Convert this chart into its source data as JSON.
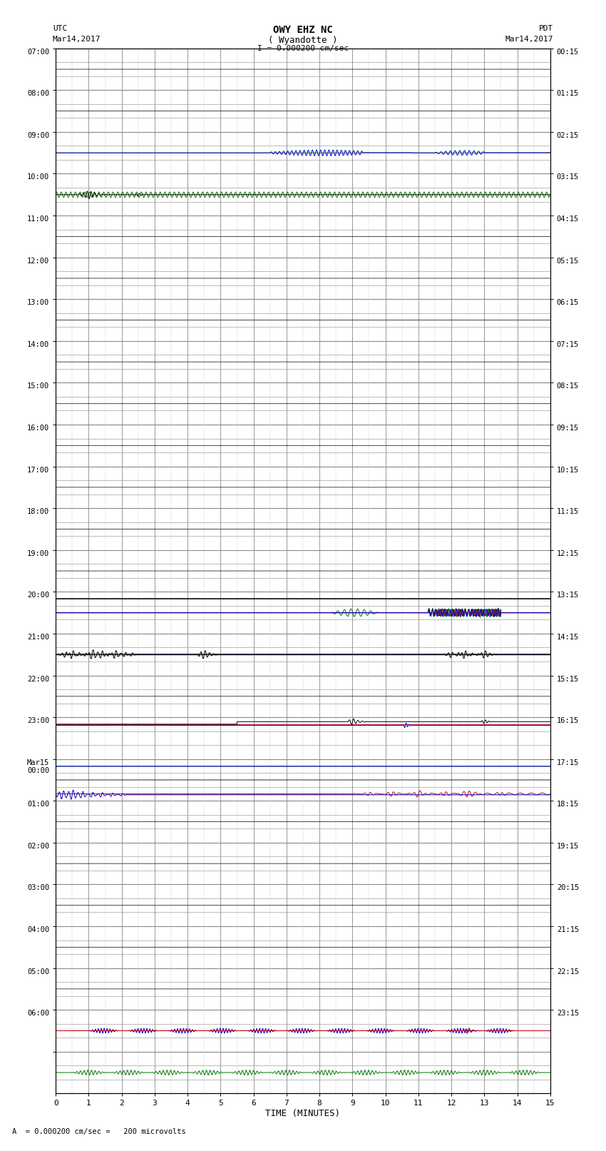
{
  "title_line1": "OWY EHZ NC",
  "title_line2": "( Wyandotte )",
  "scale_text": "I = 0.000200 cm/sec",
  "left_label_top": "UTC",
  "left_label_date": "Mar14,2017",
  "right_label_top": "PDT",
  "right_label_date": "Mar14,2017",
  "bottom_label": "TIME (MINUTES)",
  "footer_text": "A  = 0.000200 cm/sec =   200 microvolts",
  "xlabel_ticks": [
    0,
    1,
    2,
    3,
    4,
    5,
    6,
    7,
    8,
    9,
    10,
    11,
    12,
    13,
    14,
    15
  ],
  "utc_times_left": [
    "07:00",
    "",
    "",
    "08:00",
    "",
    "",
    "09:00",
    "",
    "",
    "10:00",
    "",
    "",
    "11:00",
    "",
    "",
    "12:00",
    "",
    "",
    "13:00",
    "",
    "",
    "14:00",
    "",
    "",
    "15:00",
    "",
    "",
    "16:00",
    "",
    "",
    "17:00",
    "",
    "",
    "18:00",
    "",
    "",
    "19:00",
    "",
    "",
    "20:00",
    "",
    "",
    "21:00",
    "",
    "",
    "22:00",
    "",
    "",
    "23:00",
    "",
    "",
    "Mar15",
    "00:00",
    "",
    "",
    "01:00",
    "",
    "",
    "02:00",
    "",
    "",
    "03:00",
    "",
    "",
    "04:00",
    "",
    "",
    "05:00",
    "",
    "",
    "06:00",
    "",
    ""
  ],
  "pdt_times_right": [
    "00:15",
    "",
    "",
    "01:15",
    "",
    "",
    "02:15",
    "",
    "",
    "03:15",
    "",
    "",
    "04:15",
    "",
    "",
    "05:15",
    "",
    "",
    "06:15",
    "",
    "",
    "07:15",
    "",
    "",
    "08:15",
    "",
    "",
    "09:15",
    "",
    "",
    "10:15",
    "",
    "",
    "11:15",
    "",
    "",
    "12:15",
    "",
    "",
    "13:15",
    "",
    "",
    "14:15",
    "",
    "",
    "15:15",
    "",
    "",
    "16:15",
    "",
    "",
    "17:15",
    "",
    "",
    "18:15",
    "",
    "",
    "19:15",
    "",
    "",
    "20:15",
    "",
    "",
    "21:15",
    "",
    "",
    "22:15",
    "",
    "",
    "23:15",
    "",
    ""
  ],
  "n_rows": 75,
  "fig_bg": "white",
  "grid_color": "#888888",
  "minor_grid_color": "#cccccc",
  "text_color": "black",
  "black": "#000000",
  "blue": "#0000cc",
  "red": "#cc0000",
  "green": "#007700"
}
